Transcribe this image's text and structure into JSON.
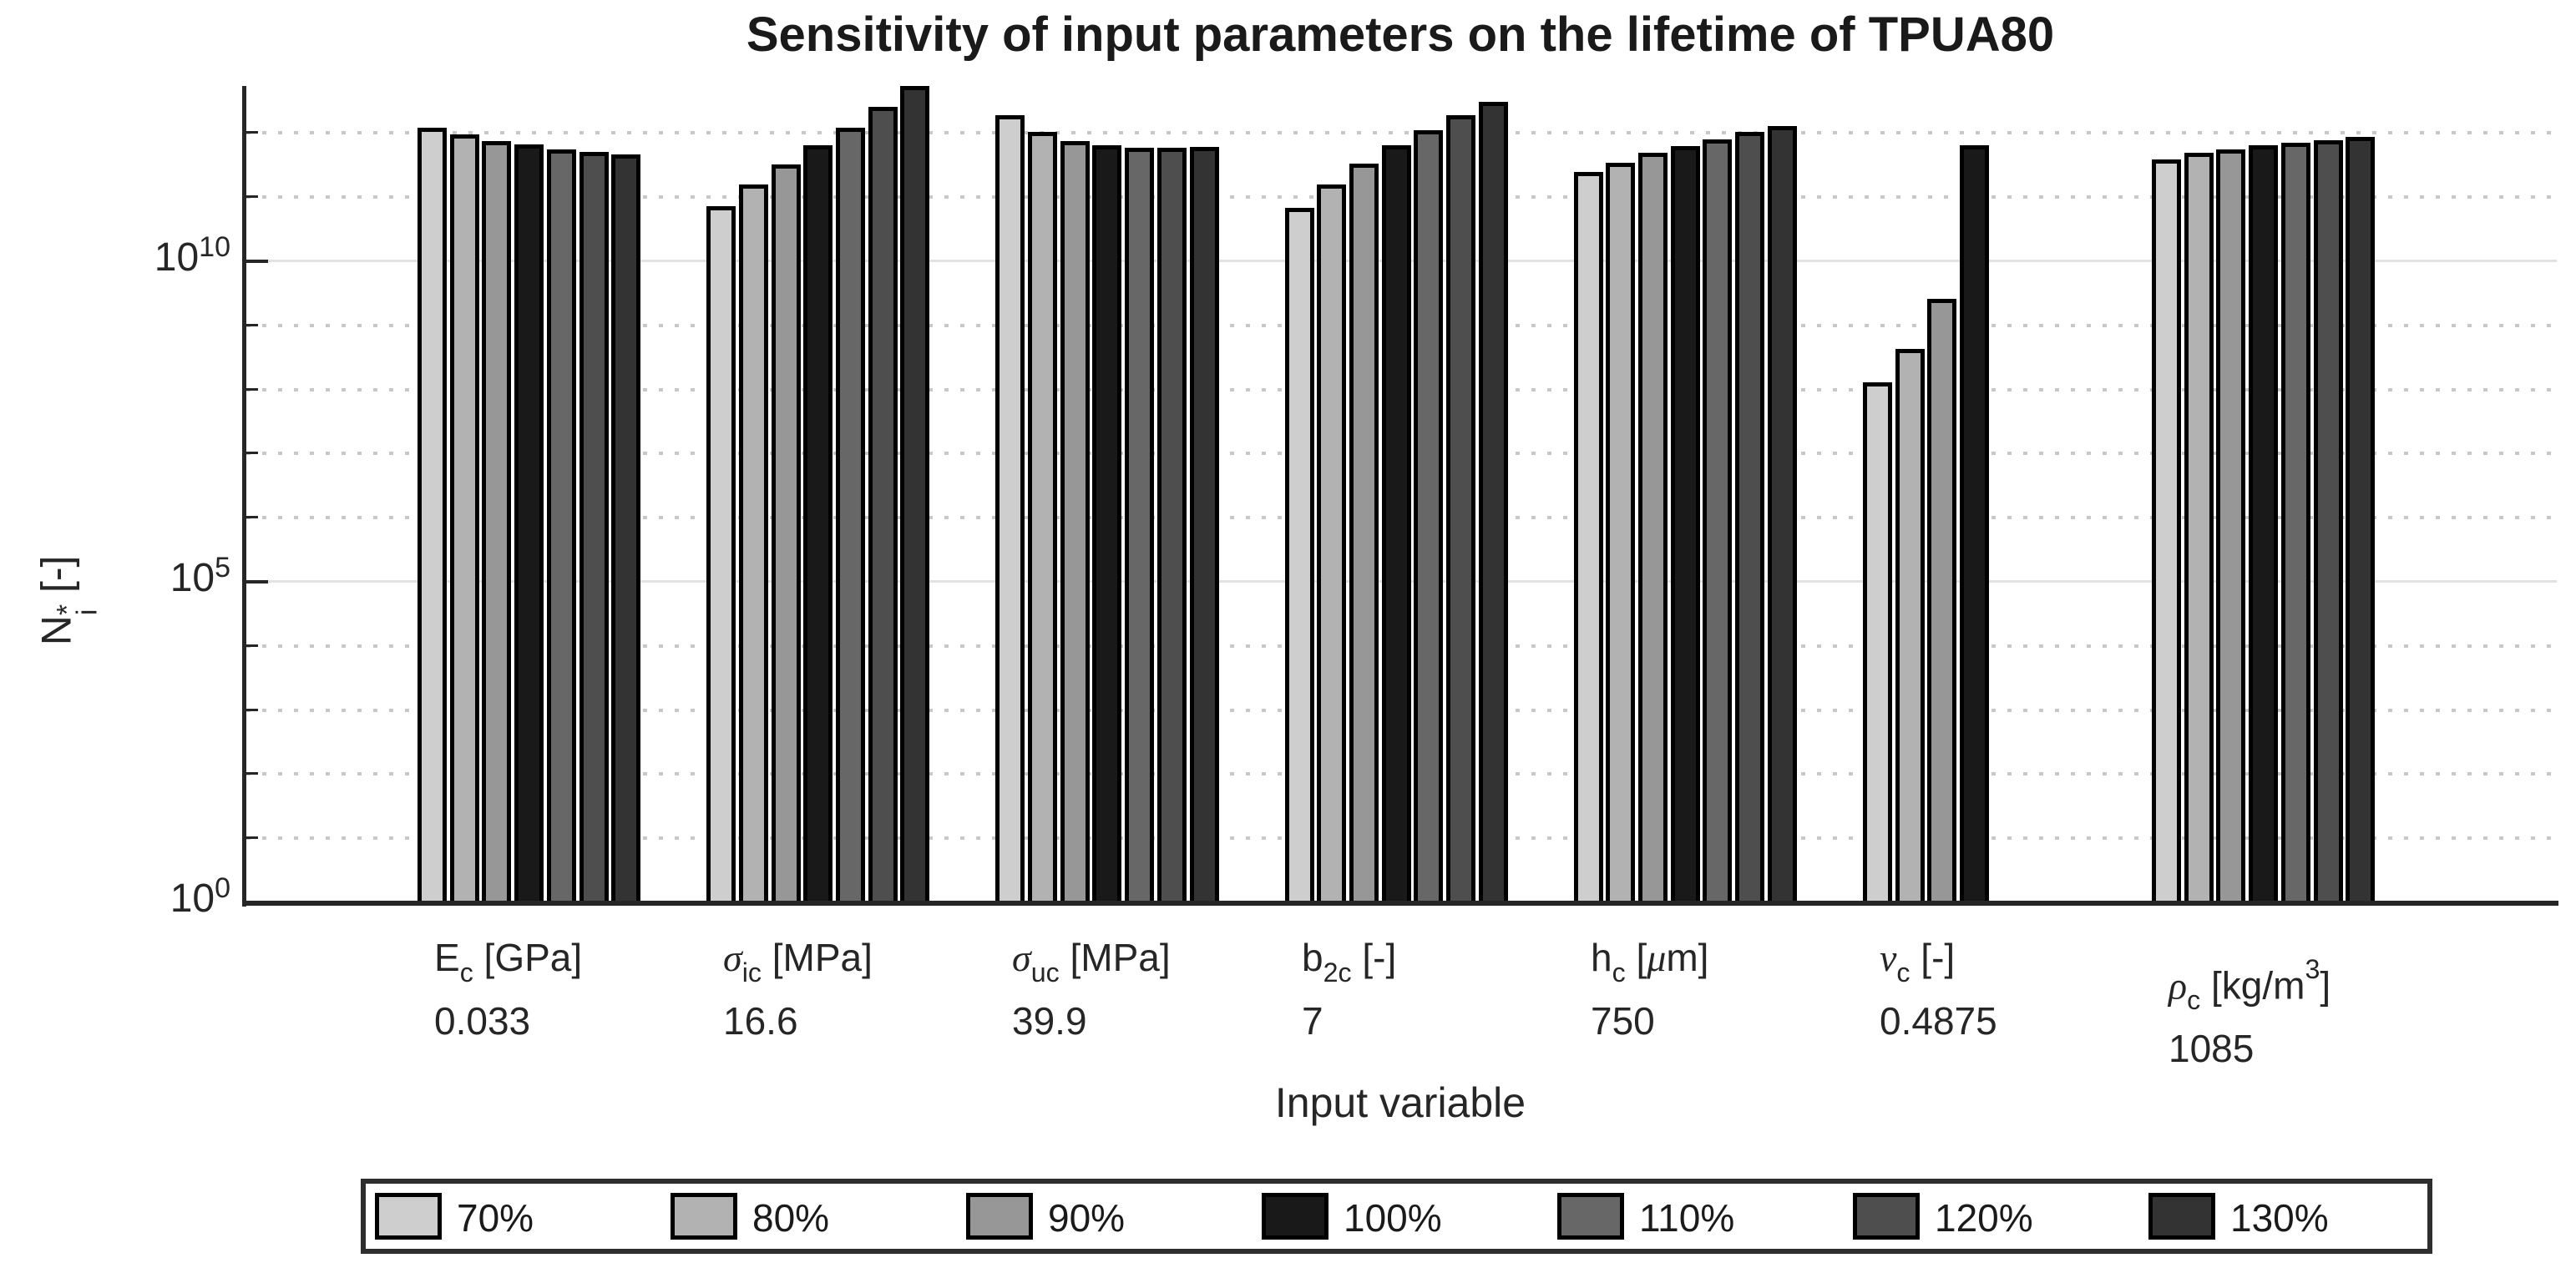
{
  "title": "Sensitivity of input parameters on the lifetime of TPUA80",
  "axes": {
    "x_label": "Input variable",
    "y_label": {
      "main": "N",
      "sup": "*",
      "sub": "i",
      "unit": " [-]"
    },
    "y_tick_base": "10",
    "y_tick_exponents": [
      "0",
      "5",
      "10"
    ],
    "x_tick_labels": [
      {
        "segments": [
          {
            "t": "E"
          },
          {
            "t": "c",
            "pos": "sub"
          },
          {
            "t": " [GPa]"
          }
        ],
        "value": "0.033",
        "offset_y": 0
      },
      {
        "segments": [
          {
            "t": "σ",
            "it": true
          },
          {
            "t": "ic",
            "pos": "sub"
          },
          {
            "t": " [MPa]"
          }
        ],
        "value": "16.6",
        "offset_y": 0
      },
      {
        "segments": [
          {
            "t": "σ",
            "it": true
          },
          {
            "t": "uc",
            "pos": "sub"
          },
          {
            "t": " [MPa]"
          }
        ],
        "value": "39.9",
        "offset_y": 0
      },
      {
        "segments": [
          {
            "t": "b"
          },
          {
            "t": "2c",
            "pos": "sub"
          },
          {
            "t": " [-]"
          }
        ],
        "value": "7",
        "offset_y": 0
      },
      {
        "segments": [
          {
            "t": "h"
          },
          {
            "t": "c",
            "pos": "sub"
          },
          {
            "t": " ["
          },
          {
            "t": "μ",
            "it": true
          },
          {
            "t": "m]"
          }
        ],
        "value": "750",
        "offset_y": 0
      },
      {
        "segments": [
          {
            "t": "ν",
            "it": true
          },
          {
            "t": "c",
            "pos": "sub"
          },
          {
            "t": " [-]"
          }
        ],
        "value": "0.4875",
        "offset_y": 0
      },
      {
        "segments": [
          {
            "t": "ρ",
            "it": true
          },
          {
            "t": "c",
            "pos": "sub"
          },
          {
            "t": " [kg/m"
          },
          {
            "t": "3",
            "pos": "sup"
          },
          {
            "t": "]"
          }
        ],
        "value": "1085",
        "offset_y": 14
      }
    ]
  },
  "legend": {
    "items": [
      {
        "label": "70%",
        "color": "#cecece"
      },
      {
        "label": "80%",
        "color": "#b2b2b2"
      },
      {
        "label": "90%",
        "color": "#979797"
      },
      {
        "label": "100%",
        "color": "#191919"
      },
      {
        "label": "110%",
        "color": "#676767"
      },
      {
        "label": "120%",
        "color": "#4e4e4e"
      },
      {
        "label": "130%",
        "color": "#333333"
      }
    ]
  },
  "chart_data": {
    "type": "bar",
    "title": "Sensitivity of input parameters on the lifetime of TPUA80",
    "xlabel": "Input variable",
    "ylabel": "N_i^* [-]",
    "yscale": "log",
    "ylim": [
      1,
      5500000000000.0
    ],
    "grid": "horizontal gridlines at every decade; solid at 10^5 and 10^10, dotted elsewhere",
    "legend_position": "below chart",
    "categories": [
      "E_c [GPa] = 0.033",
      "sigma_ic [MPa] = 16.6",
      "sigma_uc [MPa] = 39.9",
      "b_2c [-] = 7",
      "h_c [um] = 750",
      "nu_c [-] = 0.4875",
      "rho_c [kg/m^3] = 1085"
    ],
    "series": [
      {
        "name": "70%",
        "color": "#cecece",
        "values": [
          1200000000000.0,
          72000000000.0,
          1900000000000.0,
          69000000000.0,
          250000000000.0,
          130000000.0,
          390000000000.0
        ]
      },
      {
        "name": "80%",
        "color": "#b2b2b2",
        "values": [
          950000000000.0,
          160000000000.0,
          1050000000000.0,
          160000000000.0,
          340000000000.0,
          430000000.0,
          500000000000.0
        ]
      },
      {
        "name": "90%",
        "color": "#979797",
        "values": [
          740000000000.0,
          320000000000.0,
          760000000000.0,
          330000000000.0,
          490000000000.0,
          2600000000.0,
          550000000000.0
        ]
      },
      {
        "name": "100%",
        "color": "#191919",
        "values": [
          660000000000.0,
          650000000000.0,
          650000000000.0,
          650000000000.0,
          620000000000.0,
          650000000000.0,
          650000000000.0
        ]
      },
      {
        "name": "110%",
        "color": "#676767",
        "values": [
          560000000000.0,
          1200000000000.0,
          590000000000.0,
          1100000000000.0,
          790000000000.0,
          null,
          710000000000.0
        ]
      },
      {
        "name": "120%",
        "color": "#4e4e4e",
        "values": [
          510000000000.0,
          2600000000000.0,
          590000000000.0,
          1900000000000.0,
          1050000000000.0,
          null,
          780000000000.0
        ]
      },
      {
        "name": "130%",
        "color": "#333333",
        "values": [
          460000000000.0,
          5400000000000.0,
          600000000000.0,
          3100000000000.0,
          1300000000000.0,
          null,
          870000000000.0
        ]
      }
    ]
  }
}
